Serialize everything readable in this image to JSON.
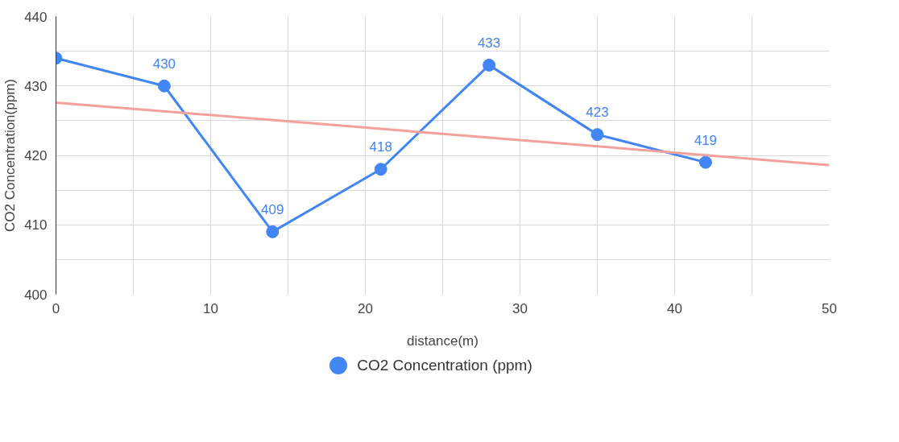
{
  "chart_data": {
    "type": "line",
    "xlabel": "distance(m)",
    "ylabel": "CO2 Concentration(ppm)",
    "x": [
      0,
      7,
      14,
      21,
      28,
      35,
      42
    ],
    "series": [
      {
        "name": "CO2  Concentration (ppm)",
        "color": "#4285f4",
        "values": [
          434,
          430,
          409,
          418,
          433,
          423,
          419
        ],
        "value_labels": [
          null,
          "430",
          "409",
          "418",
          "433",
          "423",
          "419"
        ],
        "marker": "circle"
      },
      {
        "type": "line",
        "color": "#f4a09c",
        "x": [
          0,
          50
        ],
        "values": [
          427.6,
          418.6
        ],
        "marker": "none"
      }
    ],
    "xlim": [
      0,
      50
    ],
    "ylim": [
      400,
      440
    ],
    "xticks": [
      0,
      {
        "value": 5,
        "label": null
      },
      10,
      {
        "value": 15,
        "label": null
      },
      20,
      {
        "value": 25,
        "label": null
      },
      30,
      {
        "value": 35,
        "label": null
      },
      40,
      {
        "value": 45,
        "label": null
      },
      50
    ],
    "yticks": [
      400,
      {
        "value": 405,
        "label": null
      },
      410,
      {
        "value": 415,
        "label": null
      },
      420,
      {
        "value": 425,
        "label": null
      },
      430,
      {
        "value": 435,
        "label": null
      },
      440
    ],
    "grid": true,
    "legend": "bottom"
  }
}
